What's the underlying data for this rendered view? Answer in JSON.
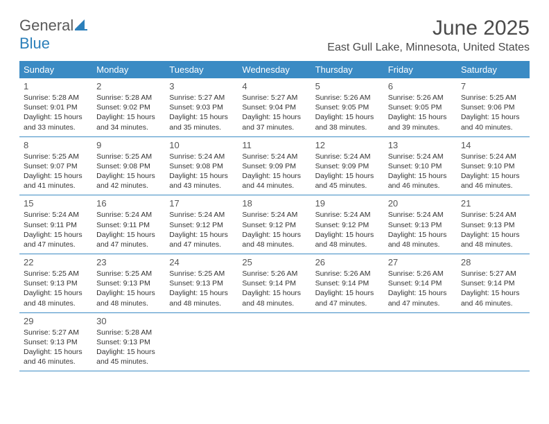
{
  "logo": {
    "word1": "General",
    "word2": "Blue"
  },
  "colors": {
    "header_bg": "#3b8bc4",
    "header_text": "#ffffff",
    "brand_gray": "#5a5a5a",
    "brand_blue": "#2b7fba",
    "text": "#333333",
    "title": "#4a4a4a"
  },
  "title": "June 2025",
  "location": "East Gull Lake, Minnesota, United States",
  "day_names": [
    "Sunday",
    "Monday",
    "Tuesday",
    "Wednesday",
    "Thursday",
    "Friday",
    "Saturday"
  ],
  "weeks": [
    [
      {
        "num": "1",
        "sunrise": "5:28 AM",
        "sunset": "9:01 PM",
        "day_h": "15",
        "day_m": "33"
      },
      {
        "num": "2",
        "sunrise": "5:28 AM",
        "sunset": "9:02 PM",
        "day_h": "15",
        "day_m": "34"
      },
      {
        "num": "3",
        "sunrise": "5:27 AM",
        "sunset": "9:03 PM",
        "day_h": "15",
        "day_m": "35"
      },
      {
        "num": "4",
        "sunrise": "5:27 AM",
        "sunset": "9:04 PM",
        "day_h": "15",
        "day_m": "37"
      },
      {
        "num": "5",
        "sunrise": "5:26 AM",
        "sunset": "9:05 PM",
        "day_h": "15",
        "day_m": "38"
      },
      {
        "num": "6",
        "sunrise": "5:26 AM",
        "sunset": "9:05 PM",
        "day_h": "15",
        "day_m": "39"
      },
      {
        "num": "7",
        "sunrise": "5:25 AM",
        "sunset": "9:06 PM",
        "day_h": "15",
        "day_m": "40"
      }
    ],
    [
      {
        "num": "8",
        "sunrise": "5:25 AM",
        "sunset": "9:07 PM",
        "day_h": "15",
        "day_m": "41"
      },
      {
        "num": "9",
        "sunrise": "5:25 AM",
        "sunset": "9:08 PM",
        "day_h": "15",
        "day_m": "42"
      },
      {
        "num": "10",
        "sunrise": "5:24 AM",
        "sunset": "9:08 PM",
        "day_h": "15",
        "day_m": "43"
      },
      {
        "num": "11",
        "sunrise": "5:24 AM",
        "sunset": "9:09 PM",
        "day_h": "15",
        "day_m": "44"
      },
      {
        "num": "12",
        "sunrise": "5:24 AM",
        "sunset": "9:09 PM",
        "day_h": "15",
        "day_m": "45"
      },
      {
        "num": "13",
        "sunrise": "5:24 AM",
        "sunset": "9:10 PM",
        "day_h": "15",
        "day_m": "46"
      },
      {
        "num": "14",
        "sunrise": "5:24 AM",
        "sunset": "9:10 PM",
        "day_h": "15",
        "day_m": "46"
      }
    ],
    [
      {
        "num": "15",
        "sunrise": "5:24 AM",
        "sunset": "9:11 PM",
        "day_h": "15",
        "day_m": "47"
      },
      {
        "num": "16",
        "sunrise": "5:24 AM",
        "sunset": "9:11 PM",
        "day_h": "15",
        "day_m": "47"
      },
      {
        "num": "17",
        "sunrise": "5:24 AM",
        "sunset": "9:12 PM",
        "day_h": "15",
        "day_m": "47"
      },
      {
        "num": "18",
        "sunrise": "5:24 AM",
        "sunset": "9:12 PM",
        "day_h": "15",
        "day_m": "48"
      },
      {
        "num": "19",
        "sunrise": "5:24 AM",
        "sunset": "9:12 PM",
        "day_h": "15",
        "day_m": "48"
      },
      {
        "num": "20",
        "sunrise": "5:24 AM",
        "sunset": "9:13 PM",
        "day_h": "15",
        "day_m": "48"
      },
      {
        "num": "21",
        "sunrise": "5:24 AM",
        "sunset": "9:13 PM",
        "day_h": "15",
        "day_m": "48"
      }
    ],
    [
      {
        "num": "22",
        "sunrise": "5:25 AM",
        "sunset": "9:13 PM",
        "day_h": "15",
        "day_m": "48"
      },
      {
        "num": "23",
        "sunrise": "5:25 AM",
        "sunset": "9:13 PM",
        "day_h": "15",
        "day_m": "48"
      },
      {
        "num": "24",
        "sunrise": "5:25 AM",
        "sunset": "9:13 PM",
        "day_h": "15",
        "day_m": "48"
      },
      {
        "num": "25",
        "sunrise": "5:26 AM",
        "sunset": "9:14 PM",
        "day_h": "15",
        "day_m": "48"
      },
      {
        "num": "26",
        "sunrise": "5:26 AM",
        "sunset": "9:14 PM",
        "day_h": "15",
        "day_m": "47"
      },
      {
        "num": "27",
        "sunrise": "5:26 AM",
        "sunset": "9:14 PM",
        "day_h": "15",
        "day_m": "47"
      },
      {
        "num": "28",
        "sunrise": "5:27 AM",
        "sunset": "9:14 PM",
        "day_h": "15",
        "day_m": "46"
      }
    ],
    [
      {
        "num": "29",
        "sunrise": "5:27 AM",
        "sunset": "9:13 PM",
        "day_h": "15",
        "day_m": "46"
      },
      {
        "num": "30",
        "sunrise": "5:28 AM",
        "sunset": "9:13 PM",
        "day_h": "15",
        "day_m": "45"
      },
      null,
      null,
      null,
      null,
      null
    ]
  ],
  "labels": {
    "sunrise_prefix": "Sunrise: ",
    "sunset_prefix": "Sunset: ",
    "daylight_prefix": "Daylight: ",
    "hours_word": " hours",
    "and_word": "and ",
    "minutes_word": " minutes."
  }
}
